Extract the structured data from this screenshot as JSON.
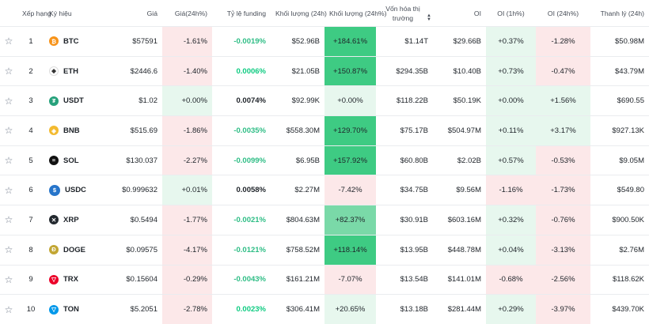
{
  "headers": {
    "rank": "Xếp hạng",
    "symbol": "Ký hiệu",
    "price": "Giá",
    "price_change": "Giá(24h%)",
    "funding": "Tỷ lệ funding",
    "volume": "Khối lượng (24h)",
    "volume_change": "Khối lượng (24h%)",
    "market_cap": "Vốn hóa thị trường",
    "oi": "OI",
    "oi_1h": "OI (1h%)",
    "oi_24h": "OI (24h%)",
    "liquidation": "Thanh lý (24h)"
  },
  "rows": [
    {
      "rank": "1",
      "symbol": "BTC",
      "icon": "bitcoin-icon",
      "color": "#f7931a",
      "glyph": "₿",
      "price": "$57591",
      "price_change": "-1.61%",
      "funding": "-0.0019%",
      "volume": "$52.96B",
      "volume_change": "+184.61%",
      "market_cap": "$1.14T",
      "oi": "$29.66B",
      "oi_1h": "+0.37%",
      "oi_24h": "-1.28%",
      "liquidation": "$50.98M"
    },
    {
      "rank": "2",
      "symbol": "ETH",
      "icon": "ethereum-icon",
      "color": "#ffffff",
      "glyph": "◆",
      "price": "$2446.6",
      "price_change": "-1.40%",
      "funding": "0.0006%",
      "volume": "$21.05B",
      "volume_change": "+150.87%",
      "market_cap": "$294.35B",
      "oi": "$10.40B",
      "oi_1h": "+0.73%",
      "oi_24h": "-0.47%",
      "liquidation": "$43.79M"
    },
    {
      "rank": "3",
      "symbol": "USDT",
      "icon": "tether-icon",
      "color": "#26a17b",
      "glyph": "₮",
      "price": "$1.02",
      "price_change": "+0.00%",
      "funding": "0.0074%",
      "volume": "$92.99K",
      "volume_change": "+0.00%",
      "market_cap": "$118.22B",
      "oi": "$50.19K",
      "oi_1h": "+0.00%",
      "oi_24h": "+1.56%",
      "liquidation": "$690.55"
    },
    {
      "rank": "4",
      "symbol": "BNB",
      "icon": "bnb-icon",
      "color": "#f3ba2f",
      "glyph": "◈",
      "price": "$515.69",
      "price_change": "-1.86%",
      "funding": "-0.0035%",
      "volume": "$558.30M",
      "volume_change": "+129.70%",
      "market_cap": "$75.17B",
      "oi": "$504.97M",
      "oi_1h": "+0.11%",
      "oi_24h": "+3.17%",
      "liquidation": "$927.13K"
    },
    {
      "rank": "5",
      "symbol": "SOL",
      "icon": "solana-icon",
      "color": "#111111",
      "glyph": "≡",
      "price": "$130.037",
      "price_change": "-2.27%",
      "funding": "-0.0099%",
      "volume": "$6.95B",
      "volume_change": "+157.92%",
      "market_cap": "$60.80B",
      "oi": "$2.02B",
      "oi_1h": "+0.57%",
      "oi_24h": "-0.53%",
      "liquidation": "$9.05M"
    },
    {
      "rank": "6",
      "symbol": "USDC",
      "icon": "usdc-icon",
      "color": "#2775ca",
      "glyph": "$",
      "price": "$0.999632",
      "price_change": "+0.01%",
      "funding": "0.0058%",
      "volume": "$2.27M",
      "volume_change": "-7.42%",
      "market_cap": "$34.75B",
      "oi": "$9.56M",
      "oi_1h": "-1.16%",
      "oi_24h": "-1.73%",
      "liquidation": "$549.80"
    },
    {
      "rank": "7",
      "symbol": "XRP",
      "icon": "xrp-icon",
      "color": "#23292f",
      "glyph": "✕",
      "price": "$0.5494",
      "price_change": "-1.77%",
      "funding": "-0.0021%",
      "volume": "$804.63M",
      "volume_change": "+82.37%",
      "market_cap": "$30.91B",
      "oi": "$603.16M",
      "oi_1h": "+0.32%",
      "oi_24h": "-0.76%",
      "liquidation": "$900.50K"
    },
    {
      "rank": "8",
      "symbol": "DOGE",
      "icon": "doge-icon",
      "color": "#c2a633",
      "glyph": "Ð",
      "price": "$0.09575",
      "price_change": "-4.17%",
      "funding": "-0.0121%",
      "volume": "$758.52M",
      "volume_change": "+118.14%",
      "market_cap": "$13.95B",
      "oi": "$448.78M",
      "oi_1h": "+0.04%",
      "oi_24h": "-3.13%",
      "liquidation": "$2.76M"
    },
    {
      "rank": "9",
      "symbol": "TRX",
      "icon": "tron-icon",
      "color": "#eb0029",
      "glyph": "▽",
      "price": "$0.15604",
      "price_change": "-0.29%",
      "funding": "-0.0043%",
      "volume": "$161.21M",
      "volume_change": "-7.07%",
      "market_cap": "$13.54B",
      "oi": "$141.01M",
      "oi_1h": "-0.68%",
      "oi_24h": "-2.56%",
      "liquidation": "$118.62K"
    },
    {
      "rank": "10",
      "symbol": "TON",
      "icon": "toncoin-icon",
      "color": "#0098ea",
      "glyph": "▽",
      "price": "$5.2051",
      "price_change": "-2.78%",
      "funding": "0.0023%",
      "volume": "$306.41M",
      "volume_change": "+20.65%",
      "market_cap": "$13.18B",
      "oi": "$281.44M",
      "oi_1h": "+0.29%",
      "oi_24h": "-3.97%",
      "liquidation": "$439.70K"
    }
  ]
}
